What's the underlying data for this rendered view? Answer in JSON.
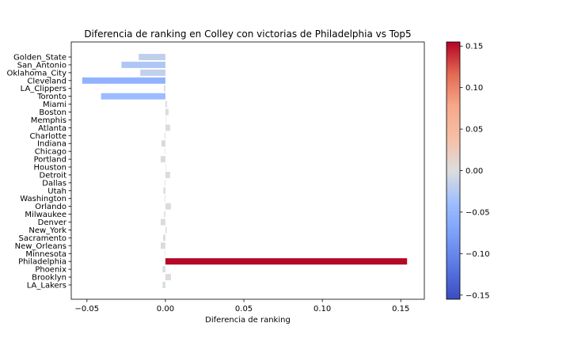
{
  "chart_data": {
    "type": "bar",
    "orientation": "horizontal",
    "title": "Diferencia de ranking en Colley con victorias de Philadelphia vs Top5",
    "xlabel": "Diferencia de ranking",
    "ylabel": "",
    "xlim": [
      -0.06,
      0.165
    ],
    "xticks": [
      -0.05,
      0.0,
      0.05,
      0.1,
      0.15
    ],
    "xtick_labels": [
      "−0.05",
      "0.00",
      "0.05",
      "0.10",
      "0.15"
    ],
    "grid": false,
    "legend": "none",
    "colormap": "coolwarm",
    "color_range": [
      -0.155,
      0.155
    ],
    "colorbar_ticks": [
      0.15,
      0.1,
      0.05,
      0.0,
      -0.05,
      -0.1,
      -0.15
    ],
    "colorbar_tick_labels": [
      "0.15",
      "0.10",
      "0.05",
      "0.00",
      "−0.05",
      "−0.10",
      "−0.15"
    ],
    "categories": [
      "Golden_State",
      "San_Antonio",
      "Oklahoma_City",
      "Cleveland",
      "LA_Clippers",
      "Toronto",
      "Miami",
      "Boston",
      "Memphis",
      "Atlanta",
      "Charlotte",
      "Indiana",
      "Chicago",
      "Portland",
      "Houston",
      "Detroit",
      "Dallas",
      "Utah",
      "Washington",
      "Orlando",
      "Milwaukee",
      "Denver",
      "New_York",
      "Sacramento",
      "New_Orleans",
      "Minnesota",
      "Philadelphia",
      "Phoenix",
      "Brooklyn",
      "LA_Lakers"
    ],
    "values": [
      -0.017,
      -0.028,
      -0.016,
      -0.053,
      -0.001,
      -0.041,
      0.001,
      0.002,
      0.0003,
      0.003,
      -0.0005,
      -0.0025,
      -0.0003,
      -0.003,
      0.0002,
      0.003,
      -0.0004,
      -0.0013,
      -0.0004,
      0.0035,
      -0.0008,
      -0.003,
      0.0008,
      -0.0015,
      -0.003,
      -0.0003,
      0.154,
      -0.0018,
      0.0035,
      -0.0018
    ]
  }
}
